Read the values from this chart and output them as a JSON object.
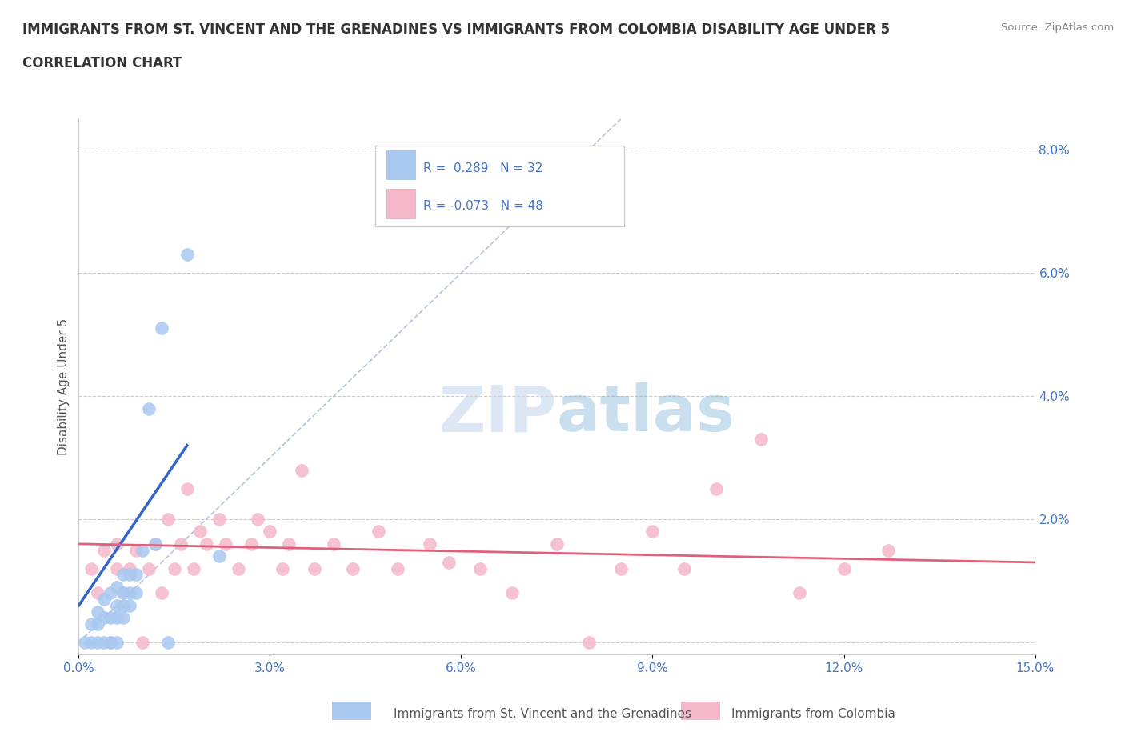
{
  "title_line1": "IMMIGRANTS FROM ST. VINCENT AND THE GRENADINES VS IMMIGRANTS FROM COLOMBIA DISABILITY AGE UNDER 5",
  "title_line2": "CORRELATION CHART",
  "source": "Source: ZipAtlas.com",
  "ylabel": "Disability Age Under 5",
  "xlim": [
    0.0,
    0.15
  ],
  "ylim": [
    -0.002,
    0.085
  ],
  "xticks": [
    0.0,
    0.03,
    0.06,
    0.09,
    0.12,
    0.15
  ],
  "xticklabels": [
    "0.0%",
    "3.0%",
    "6.0%",
    "9.0%",
    "12.0%",
    "15.0%"
  ],
  "yticks": [
    0.0,
    0.02,
    0.04,
    0.06,
    0.08
  ],
  "yticklabels": [
    "",
    "2.0%",
    "4.0%",
    "6.0%",
    "8.0%"
  ],
  "color_blue": "#a8c8f0",
  "color_pink": "#f5b8cb",
  "line_blue": "#3366cc",
  "line_pink": "#e0607a",
  "diag_line_color": "#b0c4de",
  "watermark_color": "#d5e5f2",
  "blue_scatter_x": [
    0.001,
    0.002,
    0.002,
    0.003,
    0.003,
    0.003,
    0.004,
    0.004,
    0.004,
    0.005,
    0.005,
    0.005,
    0.006,
    0.006,
    0.006,
    0.006,
    0.007,
    0.007,
    0.007,
    0.007,
    0.008,
    0.008,
    0.008,
    0.009,
    0.009,
    0.01,
    0.011,
    0.012,
    0.013,
    0.014,
    0.017,
    0.022
  ],
  "blue_scatter_y": [
    0.0,
    0.0,
    0.003,
    0.0,
    0.003,
    0.005,
    0.0,
    0.004,
    0.007,
    0.0,
    0.004,
    0.008,
    0.0,
    0.004,
    0.006,
    0.009,
    0.004,
    0.006,
    0.008,
    0.011,
    0.006,
    0.008,
    0.011,
    0.008,
    0.011,
    0.015,
    0.038,
    0.016,
    0.051,
    0.0,
    0.063,
    0.014
  ],
  "pink_scatter_x": [
    0.002,
    0.003,
    0.004,
    0.005,
    0.006,
    0.006,
    0.007,
    0.008,
    0.009,
    0.01,
    0.011,
    0.012,
    0.013,
    0.014,
    0.015,
    0.016,
    0.017,
    0.018,
    0.019,
    0.02,
    0.022,
    0.023,
    0.025,
    0.027,
    0.028,
    0.03,
    0.032,
    0.033,
    0.035,
    0.037,
    0.04,
    0.043,
    0.047,
    0.05,
    0.055,
    0.058,
    0.063,
    0.068,
    0.075,
    0.08,
    0.085,
    0.09,
    0.095,
    0.1,
    0.107,
    0.113,
    0.12,
    0.127
  ],
  "pink_scatter_y": [
    0.012,
    0.008,
    0.015,
    0.0,
    0.012,
    0.016,
    0.008,
    0.012,
    0.015,
    0.0,
    0.012,
    0.016,
    0.008,
    0.02,
    0.012,
    0.016,
    0.025,
    0.012,
    0.018,
    0.016,
    0.02,
    0.016,
    0.012,
    0.016,
    0.02,
    0.018,
    0.012,
    0.016,
    0.028,
    0.012,
    0.016,
    0.012,
    0.018,
    0.012,
    0.016,
    0.013,
    0.012,
    0.008,
    0.016,
    0.0,
    0.012,
    0.018,
    0.012,
    0.025,
    0.033,
    0.008,
    0.012,
    0.015
  ],
  "blue_line_x0": 0.0,
  "blue_line_x1": 0.017,
  "pink_line_x0": 0.0,
  "pink_line_x1": 0.15
}
